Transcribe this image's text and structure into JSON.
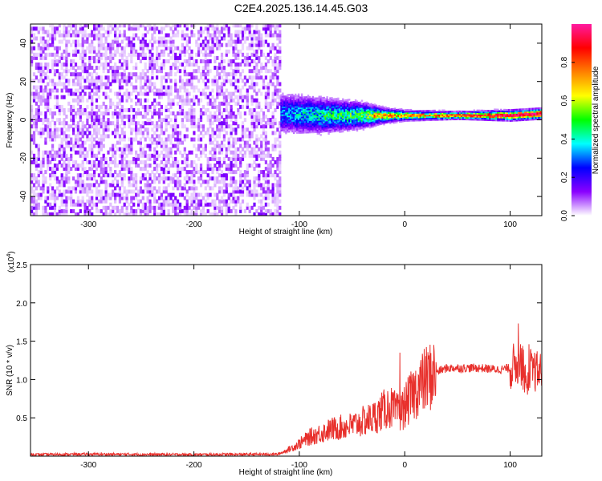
{
  "title": "C2E4.2025.136.14.45.G03",
  "chart_data": [
    {
      "type": "heatmap",
      "xlabel": "Height of straight line (km)",
      "ylabel": "Frequency (Hz)",
      "xlim": [
        -355,
        130
      ],
      "ylim": [
        -50,
        50
      ],
      "xticks": [
        -300,
        -200,
        -100,
        0,
        100
      ],
      "yticks": [
        -40,
        -20,
        0,
        20,
        40
      ],
      "colorbar": {
        "label": "Normalized spectral amplitude",
        "range": [
          0,
          1
        ],
        "ticks": [
          "0.0",
          "0.2",
          "0.4",
          "0.6",
          "0.8"
        ],
        "tick_values": [
          0.0,
          0.2,
          0.4,
          0.6,
          0.8
        ],
        "colors": [
          "#ffffff",
          "#8a00ff",
          "#0000ff",
          "#00ffff",
          "#00ff00",
          "#ffff00",
          "#ff8000",
          "#ff0000",
          "#ff1aa0"
        ]
      },
      "noise_region_x": [
        -355,
        -118
      ],
      "signal_band": [
        {
          "x": -118,
          "center": 3,
          "halfwidth": 8
        },
        {
          "x": -80,
          "center": 2,
          "halfwidth": 7
        },
        {
          "x": -40,
          "center": 2,
          "halfwidth": 5
        },
        {
          "x": -20,
          "center": 2,
          "halfwidth": 3
        },
        {
          "x": 0,
          "center": 2,
          "halfwidth": 2
        },
        {
          "x": 50,
          "center": 2,
          "halfwidth": 1.5
        },
        {
          "x": 100,
          "center": 2,
          "halfwidth": 2
        },
        {
          "x": 130,
          "center": 3,
          "halfwidth": 2
        }
      ]
    },
    {
      "type": "line",
      "xlabel": "Height of straight line (km)",
      "ylabel": "SNR (10 * v/v)",
      "scale_note": "(x10",
      "scale_exp": "4",
      "xlim": [
        -355,
        130
      ],
      "ylim": [
        0,
        25000
      ],
      "xticks": [
        -300,
        -200,
        -100,
        0,
        100
      ],
      "yticks": [
        5000,
        10000,
        15000,
        20000,
        25000
      ],
      "ytick_labels": [
        "0.5",
        "1.0",
        "1.5",
        "2.0",
        "2.5"
      ],
      "series": [
        {
          "color": "#e8302c",
          "x": [
            -355,
            -300,
            -200,
            -120,
            -105,
            -90,
            -70,
            -50,
            -30,
            -15,
            -5,
            0,
            10,
            20,
            30,
            40,
            50,
            60,
            70,
            80,
            90,
            100,
            105,
            110,
            113,
            116,
            118,
            120,
            125,
            130
          ],
          "values": [
            200,
            250,
            200,
            250,
            1200,
            2500,
            3500,
            4000,
            5000,
            6500,
            5500,
            6500,
            8500,
            10000,
            11000,
            11500,
            11500,
            11500,
            11500,
            11400,
            11300,
            11500,
            12000,
            12500,
            11000,
            9000,
            12000,
            11200,
            11000,
            11000
          ]
        }
      ]
    }
  ]
}
